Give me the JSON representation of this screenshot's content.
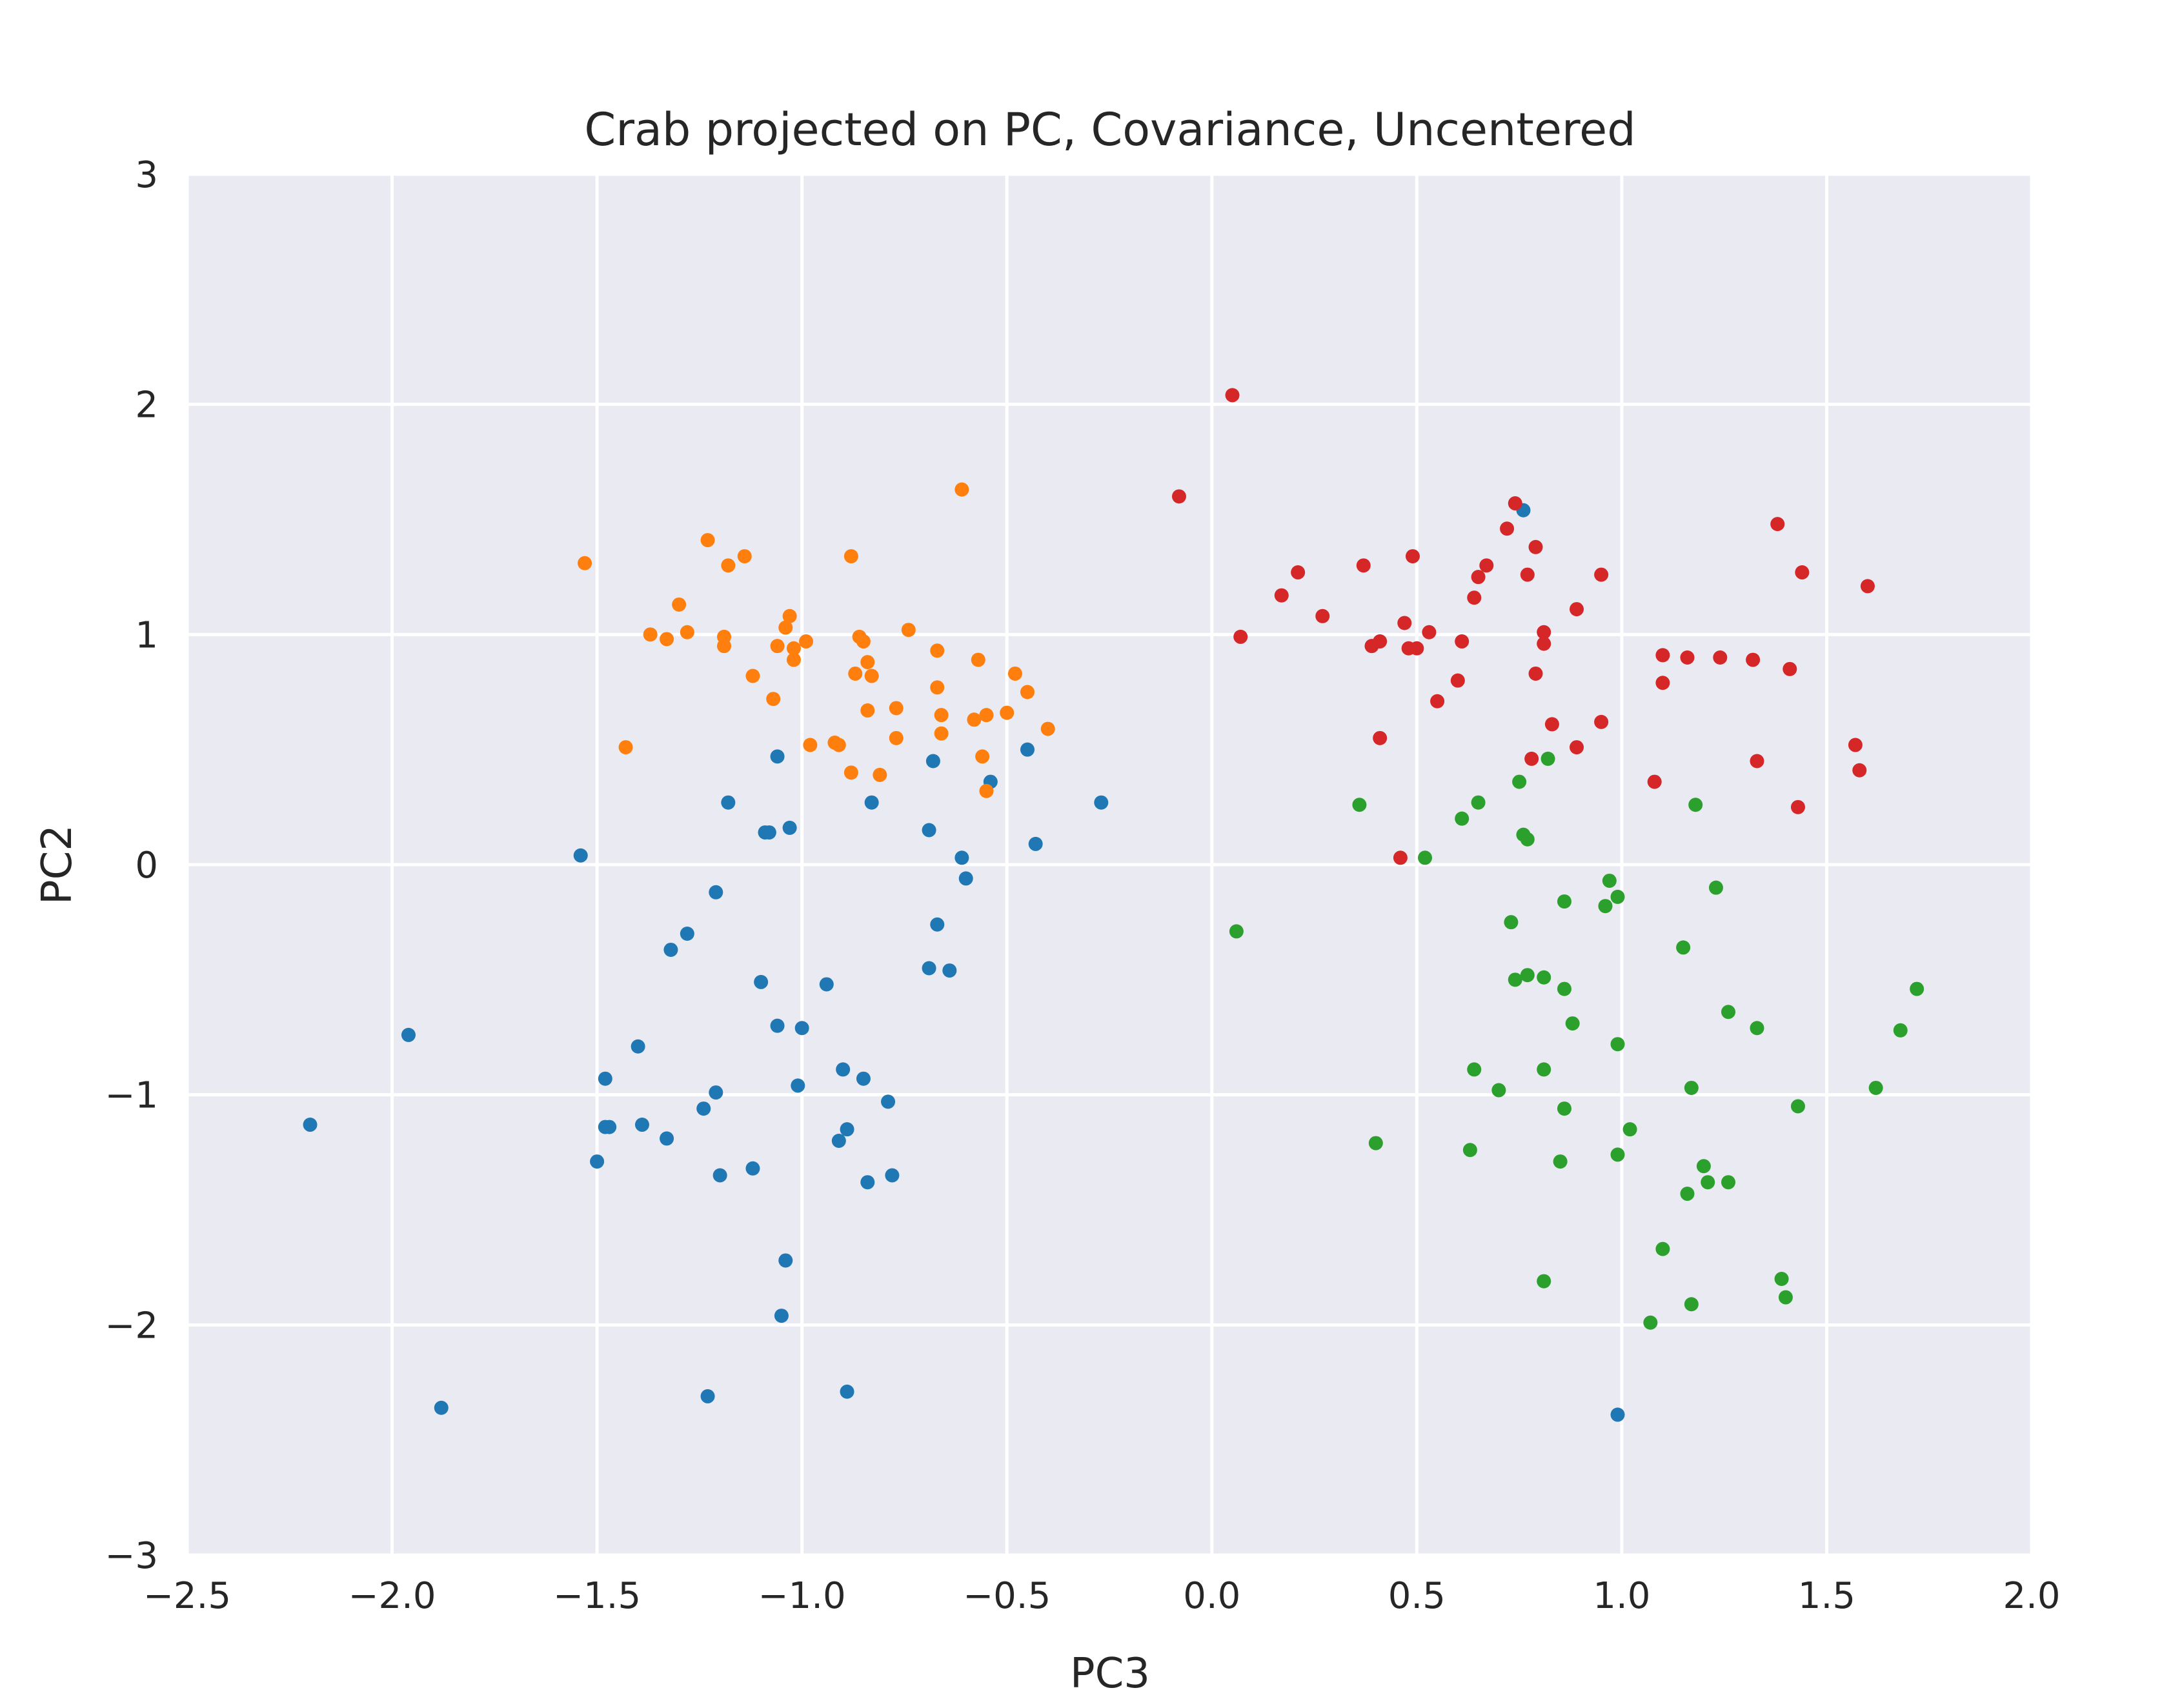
{
  "chart_data": {
    "type": "scatter",
    "title": "Crab projected on PC, Covariance, Uncentered",
    "xlabel": "PC3",
    "ylabel": "PC2",
    "xlim": [
      -2.5,
      2.0
    ],
    "ylim": [
      -3,
      3
    ],
    "xticks": [
      "−2.5",
      "−2.0",
      "−1.5",
      "−1.0",
      "−0.5",
      "0.0",
      "0.5",
      "1.0",
      "1.5",
      "2.0"
    ],
    "xtick_values": [
      -2.5,
      -2.0,
      -1.5,
      -1.0,
      -0.5,
      0.0,
      0.5,
      1.0,
      1.5,
      2.0
    ],
    "yticks": [
      "3",
      "2",
      "1",
      "0",
      "−1",
      "−2",
      "−3"
    ],
    "ytick_values": [
      3,
      2,
      1,
      0,
      -1,
      -2,
      -3
    ],
    "grid": true,
    "background": "#EAEAF2",
    "series": [
      {
        "color": "#1f77b4",
        "points": [
          [
            -2.2,
            -1.13
          ],
          [
            -1.96,
            -0.74
          ],
          [
            -1.88,
            -2.36
          ],
          [
            -1.54,
            0.04
          ],
          [
            -1.5,
            -1.29
          ],
          [
            -1.48,
            -0.93
          ],
          [
            -1.48,
            -1.14
          ],
          [
            -1.47,
            -1.14
          ],
          [
            -1.4,
            -0.79
          ],
          [
            -1.39,
            -1.13
          ],
          [
            -1.33,
            -1.19
          ],
          [
            -1.32,
            -0.37
          ],
          [
            -1.28,
            -0.3
          ],
          [
            -1.24,
            -1.06
          ],
          [
            -1.23,
            -2.31
          ],
          [
            -1.21,
            -0.12
          ],
          [
            -1.21,
            -0.99
          ],
          [
            -1.2,
            -1.35
          ],
          [
            -1.18,
            0.27
          ],
          [
            -1.12,
            -1.32
          ],
          [
            -1.1,
            -0.51
          ],
          [
            -1.09,
            0.14
          ],
          [
            -1.08,
            0.14
          ],
          [
            -1.06,
            0.47
          ],
          [
            -1.06,
            -0.7
          ],
          [
            -1.05,
            -1.96
          ],
          [
            -1.04,
            -1.72
          ],
          [
            -1.03,
            0.16
          ],
          [
            -1.01,
            -0.96
          ],
          [
            -1.0,
            -0.71
          ],
          [
            -0.94,
            -0.52
          ],
          [
            -0.91,
            -1.2
          ],
          [
            -0.9,
            -0.89
          ],
          [
            -0.89,
            -1.15
          ],
          [
            -0.89,
            -2.29
          ],
          [
            -0.85,
            -0.93
          ],
          [
            -0.84,
            -1.38
          ],
          [
            -0.83,
            0.27
          ],
          [
            -0.79,
            -1.03
          ],
          [
            -0.78,
            -1.35
          ],
          [
            -0.69,
            -0.45
          ],
          [
            -0.69,
            0.15
          ],
          [
            -0.68,
            0.45
          ],
          [
            -0.67,
            -0.26
          ],
          [
            -0.64,
            -0.46
          ],
          [
            -0.61,
            0.03
          ],
          [
            -0.6,
            -0.06
          ],
          [
            -0.54,
            0.36
          ],
          [
            -0.45,
            0.5
          ],
          [
            -0.43,
            0.09
          ],
          [
            -0.27,
            0.27
          ],
          [
            0.76,
            1.54
          ],
          [
            0.99,
            -2.39
          ]
        ]
      },
      {
        "color": "#ff7f0e",
        "points": [
          [
            -1.53,
            1.31
          ],
          [
            -1.43,
            0.51
          ],
          [
            -1.37,
            1.0
          ],
          [
            -1.33,
            0.98
          ],
          [
            -1.3,
            1.13
          ],
          [
            -1.28,
            1.01
          ],
          [
            -1.23,
            1.41
          ],
          [
            -1.19,
            0.95
          ],
          [
            -1.19,
            0.99
          ],
          [
            -1.18,
            1.3
          ],
          [
            -1.14,
            1.34
          ],
          [
            -1.12,
            0.82
          ],
          [
            -1.07,
            0.72
          ],
          [
            -1.06,
            0.95
          ],
          [
            -1.04,
            1.03
          ],
          [
            -1.03,
            1.08
          ],
          [
            -1.02,
            0.89
          ],
          [
            -1.02,
            0.94
          ],
          [
            -0.99,
            0.97
          ],
          [
            -0.98,
            0.52
          ],
          [
            -0.92,
            0.53
          ],
          [
            -0.91,
            0.52
          ],
          [
            -0.88,
            0.4
          ],
          [
            -0.88,
            1.34
          ],
          [
            -0.87,
            0.83
          ],
          [
            -0.86,
            0.99
          ],
          [
            -0.85,
            0.97
          ],
          [
            -0.84,
            0.88
          ],
          [
            -0.83,
            0.82
          ],
          [
            -0.84,
            0.67
          ],
          [
            -0.81,
            0.39
          ],
          [
            -0.77,
            0.68
          ],
          [
            -0.77,
            0.55
          ],
          [
            -0.74,
            1.02
          ],
          [
            -0.61,
            1.63
          ],
          [
            -0.67,
            0.93
          ],
          [
            -0.67,
            0.77
          ],
          [
            -0.66,
            0.65
          ],
          [
            -0.66,
            0.57
          ],
          [
            -0.58,
            0.63
          ],
          [
            -0.57,
            0.89
          ],
          [
            -0.56,
            0.47
          ],
          [
            -0.55,
            0.32
          ],
          [
            -0.55,
            0.65
          ],
          [
            -0.5,
            0.66
          ],
          [
            -0.48,
            0.83
          ],
          [
            -0.45,
            0.75
          ],
          [
            -0.4,
            0.59
          ]
        ]
      },
      {
        "color": "#2ca02c",
        "points": [
          [
            0.06,
            -0.29
          ],
          [
            0.36,
            0.26
          ],
          [
            0.4,
            -1.21
          ],
          [
            0.52,
            0.03
          ],
          [
            0.61,
            0.2
          ],
          [
            0.63,
            -1.24
          ],
          [
            0.64,
            -0.89
          ],
          [
            0.65,
            0.27
          ],
          [
            0.7,
            -0.98
          ],
          [
            0.73,
            -0.25
          ],
          [
            0.74,
            -0.5
          ],
          [
            0.75,
            0.36
          ],
          [
            0.76,
            0.13
          ],
          [
            0.77,
            -0.48
          ],
          [
            0.77,
            0.11
          ],
          [
            0.81,
            -0.49
          ],
          [
            0.81,
            -0.89
          ],
          [
            0.81,
            -1.81
          ],
          [
            0.82,
            0.46
          ],
          [
            0.85,
            -1.29
          ],
          [
            0.86,
            -0.16
          ],
          [
            0.86,
            -0.54
          ],
          [
            0.86,
            -1.06
          ],
          [
            0.88,
            -0.69
          ],
          [
            0.96,
            -0.18
          ],
          [
            0.97,
            -0.07
          ],
          [
            0.99,
            -0.14
          ],
          [
            0.99,
            -0.78
          ],
          [
            0.99,
            -1.26
          ],
          [
            1.02,
            -1.15
          ],
          [
            1.07,
            -1.99
          ],
          [
            1.1,
            -1.67
          ],
          [
            1.15,
            -0.36
          ],
          [
            1.16,
            -1.43
          ],
          [
            1.17,
            -1.91
          ],
          [
            1.17,
            -0.97
          ],
          [
            1.18,
            0.26
          ],
          [
            1.2,
            -1.31
          ],
          [
            1.21,
            -1.38
          ],
          [
            1.23,
            -0.1
          ],
          [
            1.26,
            -1.38
          ],
          [
            1.26,
            -0.64
          ],
          [
            1.33,
            -0.71
          ],
          [
            1.39,
            -1.8
          ],
          [
            1.4,
            -1.88
          ],
          [
            1.43,
            -1.05
          ],
          [
            1.62,
            -0.97
          ],
          [
            1.68,
            -0.72
          ],
          [
            1.72,
            -0.54
          ]
        ]
      },
      {
        "color": "#d62728",
        "points": [
          [
            -0.08,
            1.6
          ],
          [
            0.05,
            2.04
          ],
          [
            0.07,
            0.99
          ],
          [
            0.17,
            1.17
          ],
          [
            0.21,
            1.27
          ],
          [
            0.27,
            1.08
          ],
          [
            0.37,
            1.3
          ],
          [
            0.39,
            0.95
          ],
          [
            0.41,
            0.97
          ],
          [
            0.41,
            0.55
          ],
          [
            0.46,
            0.03
          ],
          [
            0.47,
            1.05
          ],
          [
            0.48,
            0.94
          ],
          [
            0.49,
            1.34
          ],
          [
            0.5,
            0.94
          ],
          [
            0.53,
            1.01
          ],
          [
            0.55,
            0.71
          ],
          [
            0.6,
            0.8
          ],
          [
            0.61,
            0.97
          ],
          [
            0.64,
            1.16
          ],
          [
            0.65,
            1.25
          ],
          [
            0.67,
            1.3
          ],
          [
            0.72,
            1.46
          ],
          [
            0.74,
            1.57
          ],
          [
            0.77,
            1.26
          ],
          [
            0.78,
            0.46
          ],
          [
            0.79,
            1.38
          ],
          [
            0.79,
            0.83
          ],
          [
            0.81,
            1.01
          ],
          [
            0.81,
            0.96
          ],
          [
            0.83,
            0.61
          ],
          [
            0.89,
            1.11
          ],
          [
            0.89,
            0.51
          ],
          [
            0.95,
            1.26
          ],
          [
            0.95,
            0.62
          ],
          [
            1.08,
            0.36
          ],
          [
            1.1,
            0.91
          ],
          [
            1.1,
            0.79
          ],
          [
            1.16,
            0.9
          ],
          [
            1.24,
            0.9
          ],
          [
            1.32,
            0.89
          ],
          [
            1.33,
            0.45
          ],
          [
            1.38,
            1.48
          ],
          [
            1.41,
            0.85
          ],
          [
            1.43,
            0.25
          ],
          [
            1.44,
            1.27
          ],
          [
            1.57,
            0.52
          ],
          [
            1.58,
            0.41
          ],
          [
            1.6,
            1.21
          ]
        ]
      }
    ]
  }
}
